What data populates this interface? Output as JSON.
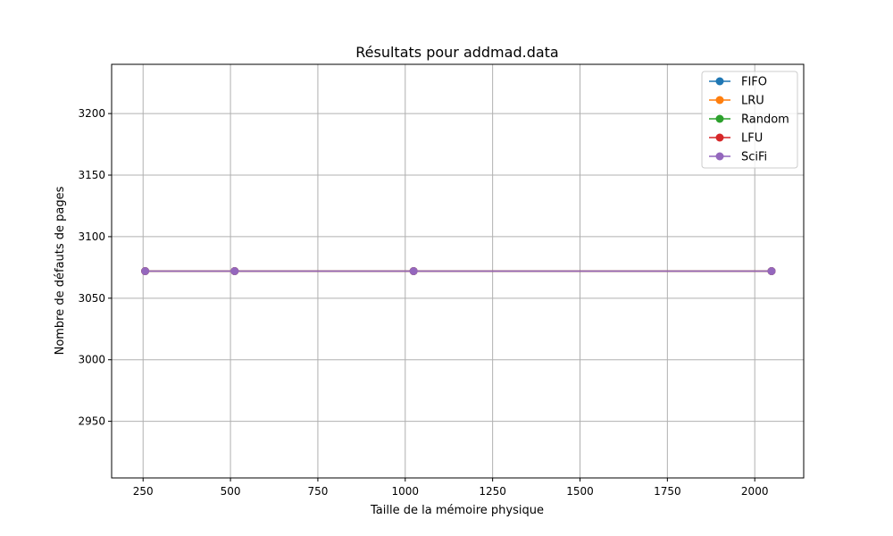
{
  "chart_data": {
    "type": "line",
    "title": "Résultats pour addmad.data",
    "xlabel": "Taille de la mémoire physique",
    "ylabel": "Nombre de défauts de pages",
    "xlim": [
      160,
      2140
    ],
    "ylim": [
      2904,
      3240
    ],
    "xticks": [
      250,
      500,
      750,
      1000,
      1250,
      1500,
      1750,
      2000
    ],
    "yticks": [
      2950,
      3000,
      3050,
      3100,
      3150,
      3200
    ],
    "grid": true,
    "legend_position": "top-right",
    "x": [
      256,
      512,
      1024,
      2048
    ],
    "series": [
      {
        "name": "FIFO",
        "color": "#1f77b4",
        "values": [
          3072,
          3072,
          3072,
          3072
        ]
      },
      {
        "name": "LRU",
        "color": "#ff7f0e",
        "values": [
          3072,
          3072,
          3072,
          3072
        ]
      },
      {
        "name": "Random",
        "color": "#2ca02c",
        "values": [
          3072,
          3072,
          3072,
          3072
        ]
      },
      {
        "name": "LFU",
        "color": "#d62728",
        "values": [
          3072,
          3072,
          3072,
          3072
        ]
      },
      {
        "name": "SciFi",
        "color": "#9467bd",
        "values": [
          3072,
          3072,
          3072,
          3072
        ]
      }
    ]
  }
}
